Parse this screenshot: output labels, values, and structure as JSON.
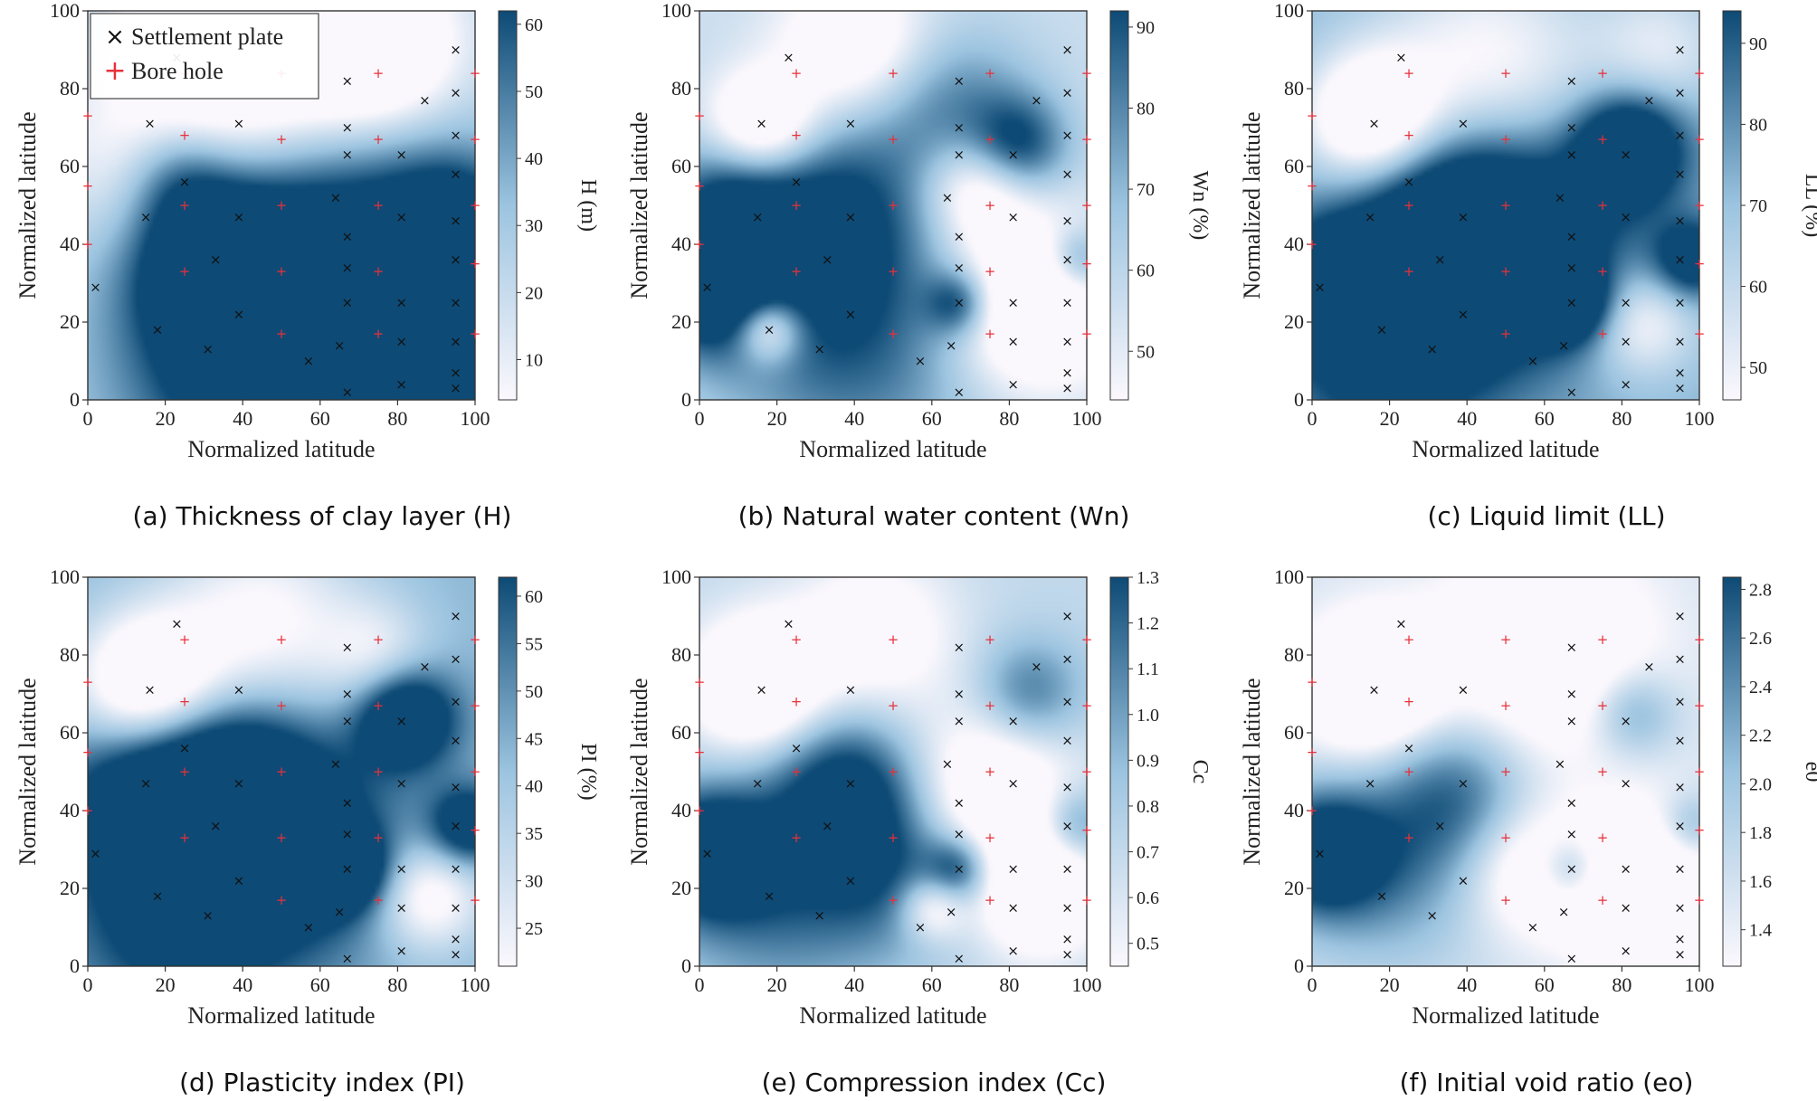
{
  "colors": {
    "low": "#fbf8fd",
    "mid": "#9cc4e0",
    "high": "#0d4a75",
    "plate_marker": "#111111",
    "hole_marker": "#e8303a"
  },
  "legend": {
    "plate_label": "Settlement plate",
    "hole_label": "Bore hole",
    "plate_symbol": "×",
    "hole_symbol": "+"
  },
  "chart_data": [
    {
      "type": "heatmap",
      "caption": "(a) Thickness of clay layer (H)",
      "xlabel": "Normalized latitude",
      "ylabel": "Normalized latitude",
      "colorbar_label": "H (m)",
      "xlim": [
        0,
        100
      ],
      "ylim": [
        0,
        100
      ],
      "xticks": [
        0,
        20,
        40,
        60,
        80,
        100
      ],
      "yticks": [
        0,
        20,
        40,
        60,
        80,
        100
      ],
      "clim": [
        4,
        62
      ],
      "cticks": [
        10,
        20,
        30,
        40,
        50,
        60
      ],
      "legend_position": "top-left",
      "blobs": [
        [
          75,
          5,
          18,
          1.0
        ],
        [
          95,
          15,
          12,
          0.9
        ],
        [
          33,
          36,
          14,
          0.9
        ],
        [
          23,
          57,
          10,
          0.5
        ],
        [
          60,
          20,
          25,
          0.8
        ],
        [
          40,
          10,
          25,
          0.6
        ],
        [
          70,
          45,
          25,
          0.45
        ],
        [
          95,
          45,
          12,
          0.7
        ]
      ],
      "base": 0.35,
      "light_spots": [
        [
          40,
          90,
          22,
          0.9
        ],
        [
          75,
          90,
          15,
          0.8
        ],
        [
          10,
          60,
          15,
          0.3
        ]
      ]
    },
    {
      "type": "heatmap",
      "caption": "(b) Natural water content (Wn)",
      "xlabel": "Normalized latitude",
      "ylabel": "Normalized latitude",
      "colorbar_label": "Wn (%)",
      "xlim": [
        0,
        100
      ],
      "ylim": [
        0,
        100
      ],
      "xticks": [
        0,
        20,
        40,
        60,
        80,
        100
      ],
      "yticks": [
        0,
        20,
        40,
        60,
        80,
        100
      ],
      "clim": [
        44,
        92
      ],
      "cticks": [
        50,
        60,
        70,
        80,
        90
      ],
      "blobs": [
        [
          2,
          29,
          12,
          1.0
        ],
        [
          30,
          48,
          20,
          0.75
        ],
        [
          82,
          65,
          9,
          0.75
        ],
        [
          67,
          25,
          6,
          0.7
        ],
        [
          98,
          36,
          6,
          0.6
        ],
        [
          8,
          50,
          12,
          0.55
        ],
        [
          40,
          15,
          25,
          0.6
        ],
        [
          65,
          75,
          15,
          0.5
        ]
      ],
      "base": 0.25,
      "light_spots": [
        [
          16,
          70,
          10,
          0.9
        ],
        [
          85,
          25,
          15,
          0.9
        ],
        [
          72,
          55,
          10,
          0.7
        ],
        [
          18,
          18,
          6,
          0.8
        ],
        [
          40,
          90,
          14,
          0.6
        ]
      ]
    },
    {
      "type": "heatmap",
      "caption": "(c) Liquid limit (LL)",
      "xlabel": "Normalized latitude",
      "ylabel": "Normalized latitude",
      "colorbar_label": "LL (%)",
      "xlim": [
        0,
        100
      ],
      "ylim": [
        0,
        100
      ],
      "xticks": [
        0,
        20,
        40,
        60,
        80,
        100
      ],
      "yticks": [
        0,
        20,
        40,
        60,
        80,
        100
      ],
      "clim": [
        46,
        94
      ],
      "cticks": [
        50,
        60,
        70,
        80,
        90
      ],
      "blobs": [
        [
          82,
          65,
          10,
          1.0
        ],
        [
          35,
          45,
          18,
          0.85
        ],
        [
          67,
          25,
          7,
          0.85
        ],
        [
          98,
          36,
          7,
          0.75
        ],
        [
          5,
          30,
          10,
          0.8
        ],
        [
          20,
          15,
          20,
          0.7
        ],
        [
          55,
          40,
          20,
          0.7
        ]
      ],
      "base": 0.55,
      "light_spots": [
        [
          15,
          72,
          12,
          1.0
        ],
        [
          45,
          85,
          20,
          0.6
        ],
        [
          85,
          20,
          10,
          0.6
        ],
        [
          90,
          90,
          12,
          0.4
        ]
      ]
    },
    {
      "type": "heatmap",
      "caption": "(d) Plasticity index (PI)",
      "xlabel": "Normalized latitude",
      "ylabel": "Normalized latitude",
      "colorbar_label": "PI (%)",
      "xlim": [
        0,
        100
      ],
      "ylim": [
        0,
        100
      ],
      "xticks": [
        0,
        20,
        40,
        60,
        80,
        100
      ],
      "yticks": [
        0,
        20,
        40,
        60,
        80,
        100
      ],
      "clim": [
        21,
        62
      ],
      "cticks": [
        25,
        30,
        35,
        40,
        45,
        50,
        55,
        60
      ],
      "blobs": [
        [
          82,
          64,
          9,
          1.0
        ],
        [
          38,
          47,
          16,
          0.85
        ],
        [
          67,
          25,
          7,
          0.85
        ],
        [
          98,
          36,
          7,
          0.8
        ],
        [
          15,
          45,
          15,
          0.7
        ],
        [
          25,
          15,
          20,
          0.7
        ],
        [
          55,
          30,
          18,
          0.6
        ]
      ],
      "base": 0.55,
      "light_spots": [
        [
          15,
          72,
          13,
          1.0
        ],
        [
          45,
          88,
          18,
          0.6
        ],
        [
          88,
          18,
          10,
          0.7
        ],
        [
          75,
          80,
          10,
          0.4
        ]
      ]
    },
    {
      "type": "heatmap",
      "caption": "(e) Compression index (Cc)",
      "xlabel": "Normalized latitude",
      "ylabel": "Normalized latitude",
      "colorbar_label": "Cc",
      "xlim": [
        0,
        100
      ],
      "ylim": [
        0,
        100
      ],
      "xticks": [
        0,
        20,
        40,
        60,
        80,
        100
      ],
      "yticks": [
        0,
        20,
        40,
        60,
        80,
        100
      ],
      "clim": [
        0.45,
        1.3
      ],
      "cticks": [
        0.5,
        0.6,
        0.7,
        0.8,
        0.9,
        1.0,
        1.1,
        1.2,
        1.3
      ],
      "blobs": [
        [
          2,
          29,
          11,
          1.0
        ],
        [
          38,
          47,
          14,
          0.75
        ],
        [
          67,
          25,
          6,
          0.7
        ],
        [
          97,
          36,
          7,
          0.6
        ],
        [
          85,
          70,
          10,
          0.55
        ],
        [
          20,
          20,
          20,
          0.55
        ],
        [
          50,
          25,
          15,
          0.5
        ]
      ],
      "base": 0.3,
      "light_spots": [
        [
          15,
          72,
          12,
          0.9
        ],
        [
          75,
          45,
          15,
          0.7
        ],
        [
          88,
          20,
          12,
          0.8
        ],
        [
          60,
          15,
          6,
          0.6
        ],
        [
          45,
          85,
          15,
          0.5
        ]
      ]
    },
    {
      "type": "heatmap",
      "caption": "(f) Initial void ratio (eo)",
      "xlabel": "Normalized latitude",
      "ylabel": "Normalized latitude",
      "colorbar_label": "e0",
      "xlim": [
        0,
        100
      ],
      "ylim": [
        0,
        100
      ],
      "xticks": [
        0,
        20,
        40,
        60,
        80,
        100
      ],
      "yticks": [
        0,
        20,
        40,
        60,
        80,
        100
      ],
      "clim": [
        1.25,
        2.85
      ],
      "cticks": [
        1.4,
        1.6,
        1.8,
        2.0,
        2.2,
        2.4,
        2.6,
        2.8
      ],
      "blobs": [
        [
          2,
          29,
          11,
          1.0
        ],
        [
          38,
          45,
          14,
          0.6
        ],
        [
          67,
          25,
          6,
          0.6
        ],
        [
          83,
          65,
          8,
          0.5
        ],
        [
          98,
          36,
          6,
          0.45
        ],
        [
          20,
          25,
          18,
          0.5
        ]
      ],
      "base": 0.2,
      "light_spots": [
        [
          15,
          72,
          12,
          0.9
        ],
        [
          60,
          80,
          20,
          0.6
        ],
        [
          85,
          20,
          14,
          0.8
        ],
        [
          55,
          25,
          12,
          0.5
        ]
      ]
    }
  ],
  "settlement_plates": [
    [
      2,
      29
    ],
    [
      15,
      47
    ],
    [
      16,
      71
    ],
    [
      18,
      18
    ],
    [
      23,
      88
    ],
    [
      25,
      56
    ],
    [
      31,
      13
    ],
    [
      33,
      36
    ],
    [
      39,
      71
    ],
    [
      39,
      47
    ],
    [
      39,
      22
    ],
    [
      57,
      10
    ],
    [
      64,
      52
    ],
    [
      65,
      14
    ],
    [
      67,
      82
    ],
    [
      67,
      70
    ],
    [
      67,
      63
    ],
    [
      67,
      42
    ],
    [
      67,
      34
    ],
    [
      67,
      25
    ],
    [
      67,
      2
    ],
    [
      81,
      63
    ],
    [
      81,
      47
    ],
    [
      81,
      25
    ],
    [
      81,
      15
    ],
    [
      81,
      4
    ],
    [
      87,
      77
    ],
    [
      95,
      90
    ],
    [
      95,
      79
    ],
    [
      95,
      68
    ],
    [
      95,
      58
    ],
    [
      95,
      46
    ],
    [
      95,
      36
    ],
    [
      95,
      25
    ],
    [
      95,
      15
    ],
    [
      95,
      7
    ],
    [
      95,
      3
    ]
  ],
  "bore_holes": [
    [
      0,
      73
    ],
    [
      0,
      55
    ],
    [
      0,
      40
    ],
    [
      25,
      84
    ],
    [
      25,
      68
    ],
    [
      25,
      50
    ],
    [
      25,
      33
    ],
    [
      50,
      84
    ],
    [
      50,
      67
    ],
    [
      50,
      50
    ],
    [
      50,
      33
    ],
    [
      50,
      17
    ],
    [
      75,
      84
    ],
    [
      75,
      67
    ],
    [
      75,
      50
    ],
    [
      75,
      33
    ],
    [
      75,
      17
    ],
    [
      100,
      84
    ],
    [
      100,
      67
    ],
    [
      100,
      50
    ],
    [
      100,
      35
    ],
    [
      100,
      17
    ]
  ]
}
